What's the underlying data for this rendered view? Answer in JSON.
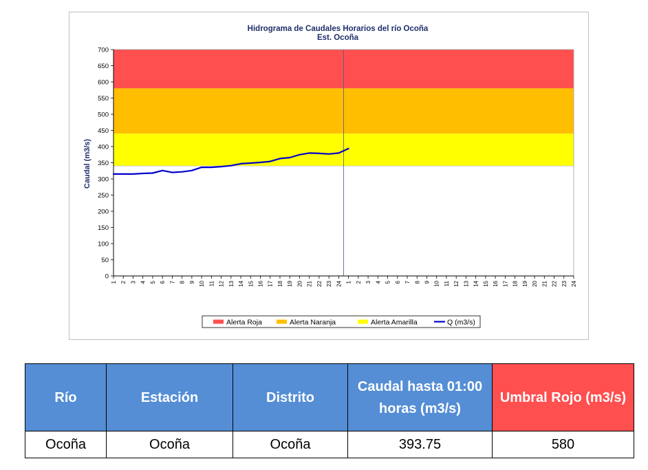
{
  "chart_data": {
    "type": "line",
    "title": "Hidrograma de Caudales Horarios del río Ocoña",
    "subtitle": "Est. Ocoña",
    "ylabel": "Caudal  (m3/s)",
    "xlabel": "",
    "ylim": [
      0,
      700
    ],
    "yticks": [
      0,
      50,
      100,
      150,
      200,
      250,
      300,
      350,
      400,
      450,
      500,
      550,
      600,
      650,
      700
    ],
    "x_tick_labels": [
      "1",
      "2",
      "3",
      "4",
      "5",
      "6",
      "7",
      "8",
      "9",
      "10",
      "11",
      "12",
      "13",
      "14",
      "15",
      "16",
      "17",
      "18",
      "19",
      "20",
      "21",
      "22",
      "23",
      "24",
      "1",
      "2",
      "3",
      "4",
      "5",
      "6",
      "7",
      "8",
      "9",
      "10",
      "11",
      "12",
      "13",
      "14",
      "15",
      "16",
      "17",
      "18",
      "19",
      "20",
      "21",
      "22",
      "23",
      "24"
    ],
    "alert_bands": [
      {
        "name": "Alerta Roja",
        "from": 580,
        "to": 700,
        "color": "#ff4f4f"
      },
      {
        "name": "Alerta Naranja",
        "from": 440,
        "to": 580,
        "color": "#ffbf00"
      },
      {
        "name": "Alerta Amarilla",
        "from": 340,
        "to": 440,
        "color": "#ffff00"
      }
    ],
    "series": [
      {
        "name": "Q (m3/s)",
        "color": "#0000cc",
        "values": [
          315,
          315,
          315,
          317,
          318,
          326,
          320,
          322,
          326,
          336,
          336,
          338,
          341,
          347,
          349,
          351,
          354,
          363,
          366,
          375,
          380,
          379,
          377,
          380,
          393.75
        ]
      }
    ],
    "grid": false,
    "legend_position": "bottom"
  },
  "table": {
    "headers": [
      "Río",
      "Estación",
      "Distrito",
      "Caudal hasta 01:00 horas (m3/s)",
      "Umbral  Rojo (m3/s)"
    ],
    "row": [
      "Ocoña",
      "Ocoña",
      "Ocoña",
      "393.75",
      "580"
    ],
    "header_color": "#558ed5",
    "threshold_color": "#ff4f4f"
  }
}
